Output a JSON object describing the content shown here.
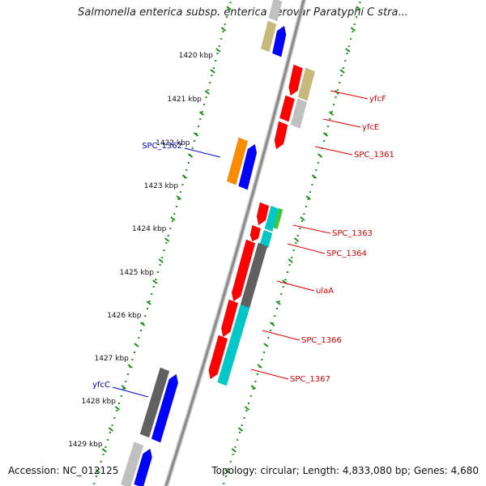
{
  "title": "Salmonella enterica subsp. enterica serovar Paratyphi C stra...",
  "footer": {
    "accession": "Accession: NC_012125",
    "summary": "Topology: circular; Length: 4,833,080 bp; Genes: 4,680"
  },
  "colors": {
    "backbone": "#8a8a8a",
    "tick": "#1f8f1f",
    "gene_red": "#ff0000",
    "gene_blue": "#0000ff",
    "label_red": "#dd0000",
    "label_blue": "#0000cc"
  },
  "kbp_marks": [
    {
      "label": "1420 kbp"
    },
    {
      "label": "1421 kbp"
    },
    {
      "label": "1422 kbp"
    },
    {
      "label": "1423 kbp"
    },
    {
      "label": "1424 kbp"
    },
    {
      "label": "1425 kbp"
    },
    {
      "label": "1426 kbp"
    },
    {
      "label": "1427 kbp"
    },
    {
      "label": "1428 kbp"
    },
    {
      "label": "1429 kbp"
    }
  ],
  "gene_labels": [
    {
      "name": "SPC_1362",
      "color": "#0000cc"
    },
    {
      "name": "yfcF",
      "color": "#dd0000"
    },
    {
      "name": "yfcE",
      "color": "#dd0000"
    },
    {
      "name": "SPC_1361",
      "color": "#dd0000"
    },
    {
      "name": "SPC_1363",
      "color": "#dd0000"
    },
    {
      "name": "SPC_1364",
      "color": "#dd0000"
    },
    {
      "name": "ulaA",
      "color": "#dd0000"
    },
    {
      "name": "SPC_1366",
      "color": "#dd0000"
    },
    {
      "name": "SPC_1367",
      "color": "#dd0000"
    },
    {
      "name": "yfcC",
      "color": "#0000cc"
    }
  ]
}
